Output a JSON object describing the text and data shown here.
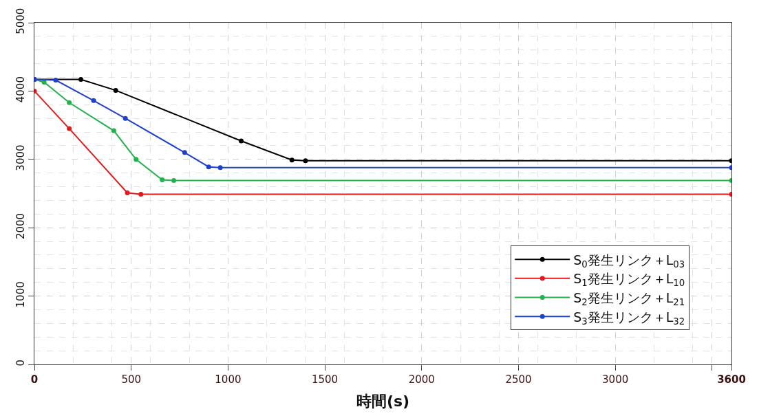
{
  "chart_data": {
    "type": "line",
    "xlabel": "時間(s)",
    "xlim": [
      0,
      3600
    ],
    "ylim": [
      0,
      5000
    ],
    "xticks": [
      0,
      500,
      1000,
      1500,
      2000,
      2500,
      3000,
      {
        "value": 3500,
        "label": null
      },
      3600
    ],
    "yticks": [
      0,
      1000,
      2000,
      3000,
      4000,
      5000
    ],
    "grid": true,
    "legend": "bottom right",
    "marker": "circle",
    "line_style": "solid",
    "series": [
      {
        "name": "S$_{0}$発生リンク＋L$_{03}$",
        "color": "#000000",
        "x": [
          0,
          240,
          420,
          1068,
          1330,
          1400,
          3600
        ],
        "values": [
          4170,
          4170,
          4010,
          3270,
          2990,
          2980,
          2980
        ]
      },
      {
        "name": "S$_{1}$発生リンク＋L$_{10}$",
        "color": "#e31a1c",
        "x": [
          0,
          180,
          480,
          550,
          3600
        ],
        "values": [
          4000,
          3450,
          2510,
          2490,
          2490
        ]
      },
      {
        "name": "S$_{2}$発生リンク＋L$_{21}$",
        "color": "#22b14c",
        "x": [
          0,
          50,
          180,
          410,
          525,
          660,
          720,
          3600
        ],
        "values": [
          4170,
          4130,
          3830,
          3420,
          3000,
          2700,
          2690,
          2690
        ]
      },
      {
        "name": "S$_{3}$発生リンク＋L$_{32}$",
        "color": "#1f3fd0",
        "x": [
          0,
          110,
          306,
          470,
          776,
          900,
          960,
          3600
        ],
        "values": [
          4170,
          4160,
          3860,
          3600,
          3100,
          2890,
          2880,
          2880
        ]
      }
    ]
  }
}
